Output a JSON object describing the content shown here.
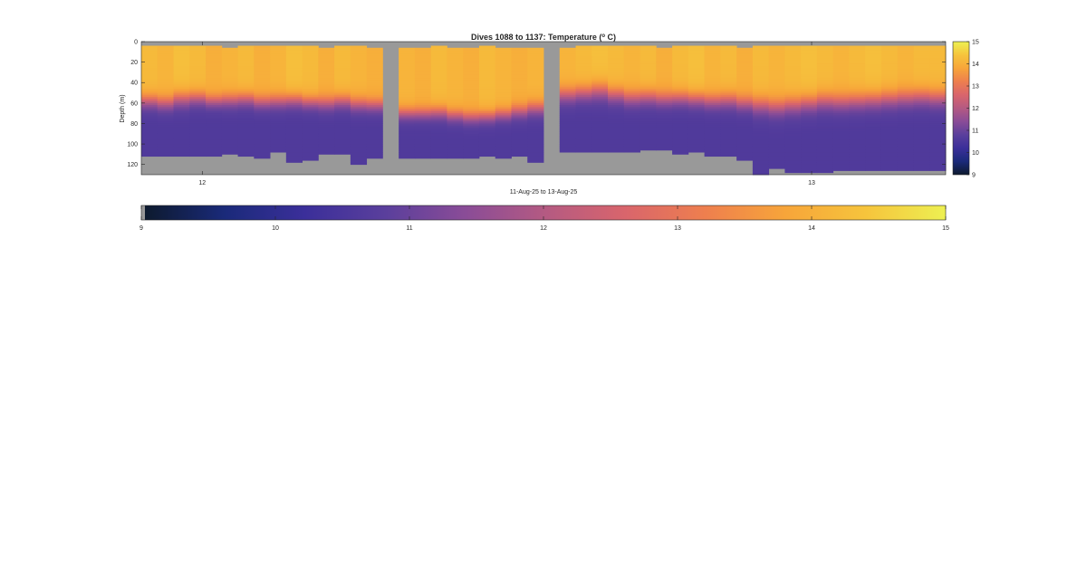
{
  "chart_data": {
    "type": "heatmap",
    "title_main": "Dives 1088 to 1137: Temperature (",
    "title_sup": "o",
    "title_end": " C)",
    "xlabel": "11-Aug-25 to 13-Aug-25",
    "ylabel": "Depth (m)",
    "x_day_range": [
      11.9,
      13.22
    ],
    "x_ticks": [
      "12",
      "13"
    ],
    "x_tick_values": [
      12,
      13
    ],
    "ylim": [
      0,
      130
    ],
    "y_ticks": [
      "0",
      "20",
      "40",
      "60",
      "80",
      "100",
      "120"
    ],
    "y_tick_values": [
      0,
      20,
      40,
      60,
      80,
      100,
      120
    ],
    "clim": [
      9,
      15
    ],
    "colorbar_ticks": [
      "9",
      "10",
      "11",
      "12",
      "13",
      "14",
      "15"
    ],
    "colorbar_tick_values": [
      9,
      10,
      11,
      12,
      13,
      14,
      15
    ],
    "colormap": [
      "#0d1a2e",
      "#1a2a7a",
      "#3b2f9a",
      "#5a3f9c",
      "#8a4c97",
      "#b45a82",
      "#d9656c",
      "#ee7f4e",
      "#f7a53a",
      "#f6c43c",
      "#edf052"
    ],
    "nodata_color": "#999999",
    "profiles": [
      {
        "surf": 14.2,
        "top": 5,
        "therm": 58,
        "width": 18,
        "bottom": 112
      },
      {
        "surf": 14.1,
        "top": 5,
        "therm": 60,
        "width": 18,
        "bottom": 112
      },
      {
        "surf": 14.3,
        "top": 4,
        "therm": 56,
        "width": 20,
        "bottom": 111
      },
      {
        "surf": 14.2,
        "top": 5,
        "therm": 55,
        "width": 18,
        "bottom": 111
      },
      {
        "surf": 14.0,
        "top": 5,
        "therm": 58,
        "width": 16,
        "bottom": 112
      },
      {
        "surf": 14.1,
        "top": 6,
        "therm": 57,
        "width": 18,
        "bottom": 110
      },
      {
        "surf": 14.2,
        "top": 5,
        "therm": 56,
        "width": 18,
        "bottom": 112
      },
      {
        "surf": 14.0,
        "top": 5,
        "therm": 59,
        "width": 17,
        "bottom": 113
      },
      {
        "surf": 14.1,
        "top": 5,
        "therm": 58,
        "width": 18,
        "bottom": 108
      },
      {
        "surf": 14.3,
        "top": 4,
        "therm": 57,
        "width": 18,
        "bottom": 117
      },
      {
        "surf": 14.2,
        "top": 5,
        "therm": 59,
        "width": 17,
        "bottom": 116
      },
      {
        "surf": 14.0,
        "top": 6,
        "therm": 60,
        "width": 18,
        "bottom": 109
      },
      {
        "surf": 14.2,
        "top": 5,
        "therm": 58,
        "width": 18,
        "bottom": 109
      },
      {
        "surf": 14.1,
        "top": 5,
        "therm": 61,
        "width": 18,
        "bottom": 120
      },
      {
        "surf": 14.0,
        "top": 6,
        "therm": 62,
        "width": 17,
        "bottom": 113
      },
      {
        "surf": null
      },
      {
        "surf": 14.1,
        "top": 6,
        "therm": 70,
        "width": 16,
        "bottom": 114
      },
      {
        "surf": 14.0,
        "top": 6,
        "therm": 70,
        "width": 16,
        "bottom": 114
      },
      {
        "surf": 14.2,
        "top": 5,
        "therm": 69,
        "width": 17,
        "bottom": 114
      },
      {
        "surf": 14.1,
        "top": 6,
        "therm": 72,
        "width": 16,
        "bottom": 114
      },
      {
        "surf": 14.0,
        "top": 6,
        "therm": 74,
        "width": 16,
        "bottom": 113
      },
      {
        "surf": 14.2,
        "top": 5,
        "therm": 73,
        "width": 16,
        "bottom": 112
      },
      {
        "surf": 14.1,
        "top": 6,
        "therm": 71,
        "width": 16,
        "bottom": 113
      },
      {
        "surf": 14.0,
        "top": 6,
        "therm": 68,
        "width": 17,
        "bottom": 112
      },
      {
        "surf": 14.1,
        "top": 6,
        "therm": 65,
        "width": 18,
        "bottom": 117
      },
      {
        "surf": null
      },
      {
        "surf": 14.1,
        "top": 6,
        "therm": 52,
        "width": 20,
        "bottom": 108
      },
      {
        "surf": 14.2,
        "top": 5,
        "therm": 50,
        "width": 20,
        "bottom": 108
      },
      {
        "surf": 14.3,
        "top": 4,
        "therm": 48,
        "width": 22,
        "bottom": 108
      },
      {
        "surf": 14.2,
        "top": 5,
        "therm": 52,
        "width": 20,
        "bottom": 108
      },
      {
        "surf": 14.1,
        "top": 5,
        "therm": 55,
        "width": 20,
        "bottom": 108
      },
      {
        "surf": 14.2,
        "top": 5,
        "therm": 54,
        "width": 20,
        "bottom": 106
      },
      {
        "surf": 14.0,
        "top": 6,
        "therm": 56,
        "width": 19,
        "bottom": 106
      },
      {
        "surf": 14.2,
        "top": 5,
        "therm": 55,
        "width": 19,
        "bottom": 110
      },
      {
        "surf": 14.3,
        "top": 4,
        "therm": 56,
        "width": 19,
        "bottom": 108
      },
      {
        "surf": 14.1,
        "top": 5,
        "therm": 58,
        "width": 19,
        "bottom": 112
      },
      {
        "surf": 14.2,
        "top": 5,
        "therm": 57,
        "width": 20,
        "bottom": 112
      },
      {
        "surf": 14.0,
        "top": 6,
        "therm": 60,
        "width": 19,
        "bottom": 116
      },
      {
        "surf": 14.2,
        "top": 5,
        "therm": 62,
        "width": 22,
        "bottom": 130
      },
      {
        "surf": 14.1,
        "top": 5,
        "therm": 64,
        "width": 22,
        "bottom": 124
      },
      {
        "surf": 14.2,
        "top": 5,
        "therm": 62,
        "width": 22,
        "bottom": 127
      },
      {
        "surf": 14.3,
        "top": 4,
        "therm": 60,
        "width": 22,
        "bottom": 127
      },
      {
        "surf": 14.2,
        "top": 5,
        "therm": 58,
        "width": 22,
        "bottom": 127
      },
      {
        "surf": 14.1,
        "top": 5,
        "therm": 59,
        "width": 22,
        "bottom": 126
      },
      {
        "surf": 14.2,
        "top": 5,
        "therm": 58,
        "width": 22,
        "bottom": 125
      },
      {
        "surf": 14.3,
        "top": 4,
        "therm": 57,
        "width": 22,
        "bottom": 125
      },
      {
        "surf": 14.2,
        "top": 5,
        "therm": 56,
        "width": 22,
        "bottom": 125
      },
      {
        "surf": 14.1,
        "top": 5,
        "therm": 55,
        "width": 22,
        "bottom": 125
      },
      {
        "surf": 14.2,
        "top": 5,
        "therm": 54,
        "width": 22,
        "bottom": 125
      },
      {
        "surf": 14.2,
        "top": 5,
        "therm": 55,
        "width": 22,
        "bottom": 125
      }
    ]
  }
}
